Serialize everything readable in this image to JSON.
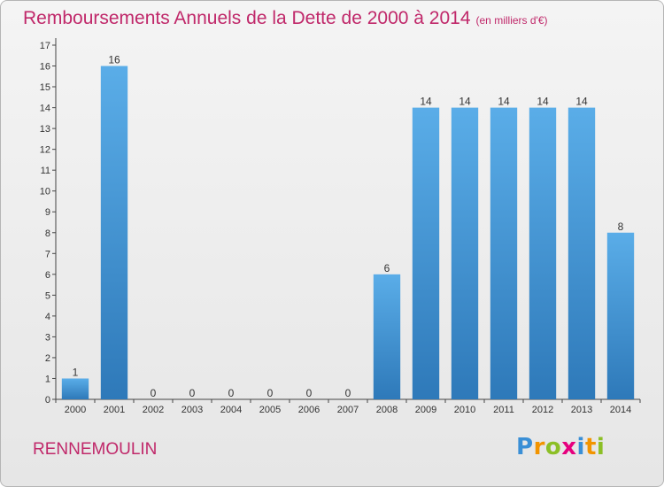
{
  "header": {
    "title": "Remboursements Annuels de la Dette de 2000 à 2014",
    "subtitle": "(en milliers d'€)"
  },
  "footer": {
    "commune": "RENNEMOULIN",
    "logo_letters": [
      "P",
      "r",
      "o",
      "x",
      "i",
      "t",
      "i"
    ]
  },
  "colors": {
    "title": "#c0286a",
    "bar_top": "#5aade8",
    "bar_bottom": "#2e79b9"
  },
  "chart_data": {
    "type": "bar",
    "categories": [
      "2000",
      "2001",
      "2002",
      "2003",
      "2004",
      "2005",
      "2006",
      "2007",
      "2008",
      "2009",
      "2010",
      "2011",
      "2012",
      "2013",
      "2014"
    ],
    "values": [
      1,
      16,
      0,
      0,
      0,
      0,
      0,
      0,
      6,
      14,
      14,
      14,
      14,
      14,
      8
    ],
    "ylim": [
      0,
      17
    ],
    "yticks": [
      0,
      1,
      2,
      3,
      4,
      5,
      6,
      7,
      8,
      9,
      10,
      11,
      12,
      13,
      14,
      15,
      16,
      17
    ],
    "grid": false,
    "data_labels": true
  }
}
